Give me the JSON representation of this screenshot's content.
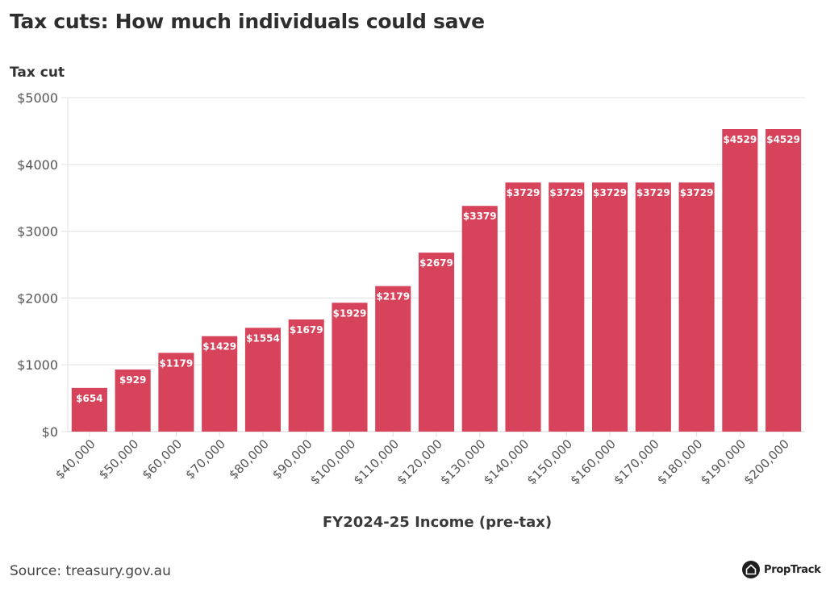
{
  "chart_data": {
    "type": "bar",
    "title": "Tax cuts: How much individuals could save",
    "ylabel": "Tax cut",
    "xlabel": "FY2024-25 Income (pre-tax)",
    "categories": [
      "$40,000",
      "$50,000",
      "$60,000",
      "$70,000",
      "$80,000",
      "$90,000",
      "$100,000",
      "$110,000",
      "$120,000",
      "$130,000",
      "$140,000",
      "$150,000",
      "$160,000",
      "$170,000",
      "$180,000",
      "$190,000",
      "$200,000"
    ],
    "values": [
      654,
      929,
      1179,
      1429,
      1554,
      1679,
      1929,
      2179,
      2679,
      3379,
      3729,
      3729,
      3729,
      3729,
      3729,
      4529,
      4529
    ],
    "data_labels": [
      "$654",
      "$929",
      "$1179",
      "$1429",
      "$1554",
      "$1679",
      "$1929",
      "$2179",
      "$2679",
      "$3379",
      "$3729",
      "$3729",
      "$3729",
      "$3729",
      "$3729",
      "$4529",
      "$4529"
    ],
    "ylim": [
      0,
      5000
    ],
    "yticks": [
      0,
      1000,
      2000,
      3000,
      4000,
      5000
    ],
    "ytick_labels": [
      "$0",
      "$1000",
      "$2000",
      "$3000",
      "$4000",
      "$5000"
    ],
    "grid": true,
    "legend": "none",
    "bar_color": "#d6435a"
  },
  "footer": {
    "source": "Source: treasury.gov.au",
    "brand": "PropTrack"
  }
}
